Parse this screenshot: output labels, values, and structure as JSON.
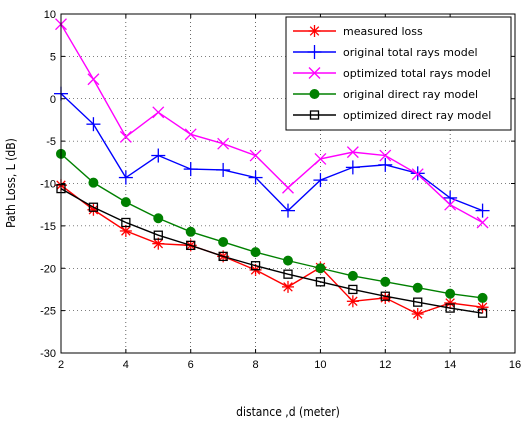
{
  "chart_data": {
    "type": "line",
    "title": "",
    "xlabel": "distance ,d (meter)",
    "ylabel": "Path Loss, L (dB)",
    "xlim": [
      2,
      16
    ],
    "ylim": [
      -30,
      10
    ],
    "xticks": [
      2,
      4,
      6,
      8,
      10,
      12,
      14,
      16
    ],
    "yticks": [
      -30,
      -25,
      -20,
      -15,
      -10,
      -5,
      0,
      5,
      10
    ],
    "grid": "dotted",
    "legend_position": "top-right",
    "x": [
      2,
      3,
      4,
      5,
      6,
      7,
      8,
      9,
      10,
      11,
      12,
      13,
      14,
      15
    ],
    "series": [
      {
        "name": "measured loss",
        "color": "#ff0000",
        "marker": "asterisk",
        "values": [
          -10.2,
          -13.1,
          -15.6,
          -17.1,
          -17.3,
          -18.6,
          -20.2,
          -22.2,
          -19.9,
          -23.9,
          -23.5,
          -25.4,
          -24.1,
          -24.6
        ]
      },
      {
        "name": "original total rays model",
        "color": "#0000ff",
        "marker": "plus",
        "values": [
          0.6,
          -3.0,
          -9.3,
          -6.7,
          -8.3,
          -8.4,
          -9.3,
          -13.2,
          -9.6,
          -8.1,
          -7.8,
          -8.8,
          -11.7,
          -13.2
        ]
      },
      {
        "name": "optimized total rays model",
        "color": "#ff00ff",
        "marker": "x",
        "values": [
          8.8,
          2.3,
          -4.5,
          -1.6,
          -4.2,
          -5.3,
          -6.7,
          -10.5,
          -7.1,
          -6.3,
          -6.7,
          -8.9,
          -12.5,
          -14.6
        ]
      },
      {
        "name": "original direct ray model",
        "color": "#008000",
        "marker": "filled-circle",
        "values": [
          -6.5,
          -9.9,
          -12.2,
          -14.1,
          -15.7,
          -16.9,
          -18.1,
          -19.1,
          -20.0,
          -20.9,
          -21.6,
          -22.3,
          -23.0,
          -23.5
        ]
      },
      {
        "name": "optimized direct ray model",
        "color": "#000000",
        "marker": "open-square",
        "values": [
          -10.6,
          -12.8,
          -14.6,
          -16.1,
          -17.3,
          -18.6,
          -19.7,
          -20.7,
          -21.6,
          -22.5,
          -23.3,
          -24.0,
          -24.7,
          -25.3
        ]
      }
    ]
  }
}
